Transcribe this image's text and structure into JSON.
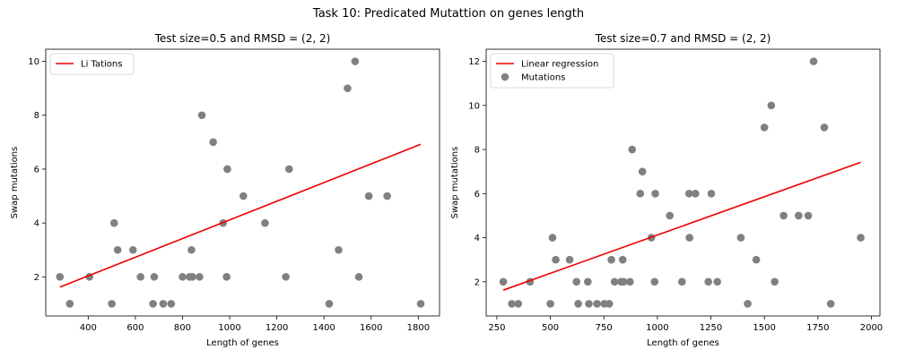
{
  "figure": {
    "suptitle": "Task 10: Predicated Mutattion on genes length"
  },
  "colors": {
    "line": "#ee0000",
    "points": "#808080",
    "axes": "#000000"
  },
  "chart_data": [
    {
      "type": "scatter",
      "title": "Test size=0.5 and RMSD = (2, 2)",
      "xlabel": "Length of genes",
      "ylabel": "Swap mutations",
      "xlim": [
        220,
        1890
      ],
      "ylim": [
        0.55,
        10.45
      ],
      "xticks": [
        400,
        600,
        800,
        1000,
        1200,
        1400,
        1600,
        1800
      ],
      "yticks": [
        2,
        4,
        6,
        8,
        10
      ],
      "legend": {
        "placement": "top-left",
        "entries": [
          {
            "label": "Li Tations",
            "kind": "line"
          }
        ]
      },
      "regression": {
        "x": [
          280,
          1810
        ],
        "y": [
          1.62,
          6.92
        ]
      },
      "points": [
        [
          280,
          2
        ],
        [
          322,
          1
        ],
        [
          405,
          2
        ],
        [
          500,
          1
        ],
        [
          510,
          4
        ],
        [
          525,
          3
        ],
        [
          590,
          3
        ],
        [
          622,
          2
        ],
        [
          675,
          1
        ],
        [
          680,
          2
        ],
        [
          718,
          1
        ],
        [
          752,
          1
        ],
        [
          800,
          2
        ],
        [
          830,
          2
        ],
        [
          838,
          3
        ],
        [
          842,
          2
        ],
        [
          872,
          2
        ],
        [
          882,
          8
        ],
        [
          930,
          7
        ],
        [
          972,
          4
        ],
        [
          987,
          2
        ],
        [
          990,
          6
        ],
        [
          1058,
          5
        ],
        [
          1150,
          4
        ],
        [
          1238,
          2
        ],
        [
          1252,
          6
        ],
        [
          1422,
          1
        ],
        [
          1462,
          3
        ],
        [
          1500,
          9
        ],
        [
          1532,
          10
        ],
        [
          1548,
          2
        ],
        [
          1590,
          5
        ],
        [
          1668,
          5
        ],
        [
          1810,
          1
        ]
      ]
    },
    {
      "type": "scatter",
      "title": "Test size=0.7 and RMSD = (2, 2)",
      "xlabel": "Length of genes",
      "ylabel": "Swap mutations",
      "xlim": [
        200,
        2040
      ],
      "ylim": [
        0.45,
        12.55
      ],
      "xticks": [
        250,
        500,
        750,
        1000,
        1250,
        1500,
        1750,
        2000
      ],
      "yticks": [
        2,
        4,
        6,
        8,
        10,
        12
      ],
      "legend": {
        "placement": "top-left",
        "entries": [
          {
            "label": "Linear regression",
            "kind": "line"
          },
          {
            "label": "Mutations",
            "kind": "marker"
          }
        ]
      },
      "regression": {
        "x": [
          280,
          1950
        ],
        "y": [
          1.62,
          7.42
        ]
      },
      "points": [
        [
          280,
          2
        ],
        [
          320,
          1
        ],
        [
          350,
          1
        ],
        [
          405,
          2
        ],
        [
          500,
          1
        ],
        [
          510,
          4
        ],
        [
          525,
          3
        ],
        [
          590,
          3
        ],
        [
          622,
          2
        ],
        [
          630,
          1
        ],
        [
          675,
          2
        ],
        [
          680,
          1
        ],
        [
          718,
          1
        ],
        [
          752,
          1
        ],
        [
          775,
          1
        ],
        [
          785,
          3
        ],
        [
          800,
          2
        ],
        [
          830,
          2
        ],
        [
          838,
          3
        ],
        [
          842,
          2
        ],
        [
          872,
          2
        ],
        [
          882,
          8
        ],
        [
          920,
          6
        ],
        [
          930,
          7
        ],
        [
          972,
          4
        ],
        [
          987,
          2
        ],
        [
          990,
          6
        ],
        [
          1058,
          5
        ],
        [
          1115,
          2
        ],
        [
          1150,
          4
        ],
        [
          1148,
          6
        ],
        [
          1178,
          6
        ],
        [
          1238,
          2
        ],
        [
          1252,
          6
        ],
        [
          1280,
          2
        ],
        [
          1390,
          4
        ],
        [
          1422,
          1
        ],
        [
          1462,
          3
        ],
        [
          1500,
          9
        ],
        [
          1532,
          10
        ],
        [
          1548,
          2
        ],
        [
          1590,
          5
        ],
        [
          1660,
          5
        ],
        [
          1705,
          5
        ],
        [
          1730,
          12
        ],
        [
          1780,
          9
        ],
        [
          1810,
          1
        ],
        [
          1950,
          4
        ]
      ]
    }
  ]
}
